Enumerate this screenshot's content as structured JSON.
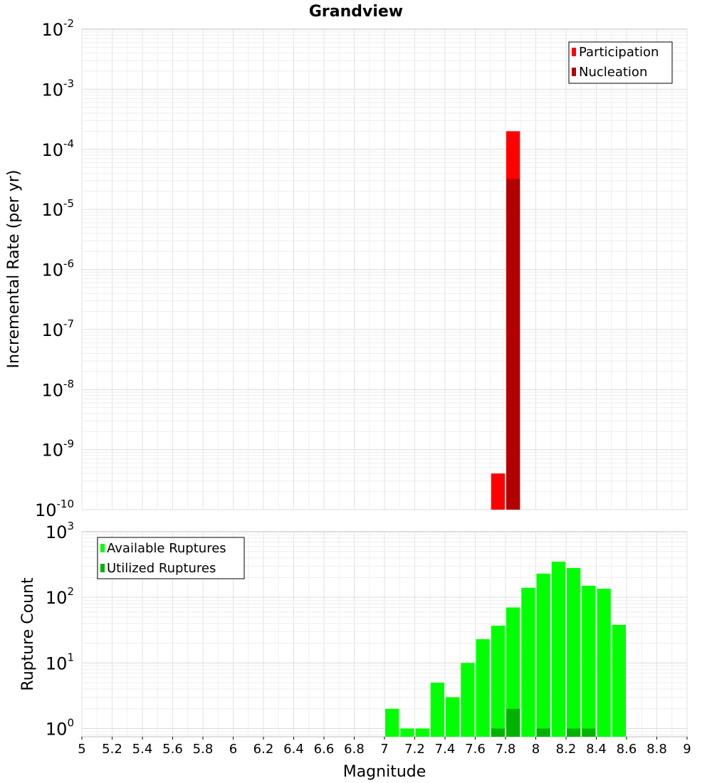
{
  "chart_data": [
    {
      "type": "bar",
      "title": "Grandview",
      "xlabel": "",
      "ylabel": "Incremental Rate (per yr)",
      "yscale": "log",
      "xlim": [
        5,
        9
      ],
      "ylim": [
        1e-10,
        0.01
      ],
      "ytick_exponents": [
        "-2",
        "-3",
        "-4",
        "-5",
        "-6",
        "-7",
        "-8",
        "-9",
        "-10"
      ],
      "ytick_base": "10",
      "legend_position": "top-right",
      "grid": true,
      "bar_width": 0.1,
      "series": [
        {
          "name": "Participation",
          "color": "#ff0000",
          "x": [
            7.75,
            7.85
          ],
          "values": [
            4e-10,
            0.0002
          ]
        },
        {
          "name": "Nucleation",
          "color": "#b30000",
          "x": [
            7.85
          ],
          "values": [
            3.2e-05
          ]
        }
      ]
    },
    {
      "type": "bar",
      "title": "",
      "xlabel": "Magnitude",
      "ylabel": "Rupture Count",
      "yscale": "log",
      "xlim": [
        5,
        9
      ],
      "ylim": [
        0.75,
        1000
      ],
      "ytick_exponents": [
        "3",
        "2",
        "1",
        "0"
      ],
      "ytick_base": "10",
      "xticks": [
        "5",
        "5.2",
        "5.4",
        "5.6",
        "5.8",
        "6",
        "6.2",
        "6.4",
        "6.6",
        "6.8",
        "7",
        "7.2",
        "7.4",
        "7.6",
        "7.8",
        "8",
        "8.2",
        "8.4",
        "8.6",
        "8.8",
        "9"
      ],
      "legend_position": "top-left",
      "grid": true,
      "bar_width": 0.1,
      "series": [
        {
          "name": "Available Ruptures",
          "color": "#00ff00",
          "x": [
            7.05,
            7.15,
            7.25,
            7.35,
            7.45,
            7.55,
            7.65,
            7.75,
            7.85,
            7.95,
            8.05,
            8.15,
            8.25,
            8.35,
            8.45,
            8.55
          ],
          "values": [
            2,
            1,
            1,
            5,
            3,
            10,
            23,
            37,
            70,
            140,
            230,
            350,
            280,
            150,
            135,
            38
          ]
        },
        {
          "name": "Utilized Ruptures",
          "color": "#00b300",
          "x": [
            7.75,
            7.85,
            8.05,
            8.25,
            8.35
          ],
          "values": [
            1,
            2,
            1,
            1,
            1
          ]
        }
      ]
    }
  ]
}
